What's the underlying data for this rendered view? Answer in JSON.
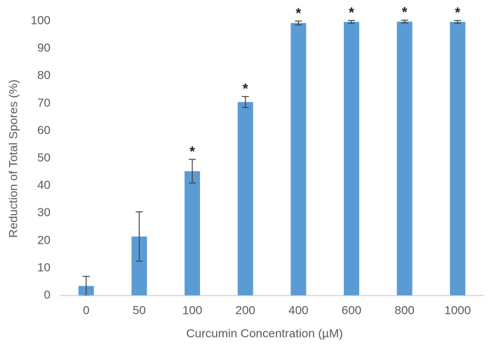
{
  "chart_data": {
    "type": "bar",
    "x_label": "Curcumin Concentration (µM)",
    "y_label": "Reduction of Total Spores (%)",
    "categories": [
      "0",
      "50",
      "100",
      "200",
      "400",
      "600",
      "800",
      "1000"
    ],
    "values": [
      3.5,
      21.5,
      45.3,
      70.5,
      99.3,
      99.7,
      99.8,
      99.7
    ],
    "errors": [
      3.5,
      9,
      4.3,
      2,
      0.7,
      0.5,
      0.5,
      0.5
    ],
    "annotations": [
      null,
      null,
      "*",
      "*",
      "*",
      "*",
      "*",
      "*"
    ],
    "color": "#5b9bd5",
    "ylim": [
      0,
      100
    ],
    "yticks": [
      0,
      10,
      20,
      30,
      40,
      50,
      60,
      70,
      80,
      90,
      100
    ],
    "grid": false
  }
}
